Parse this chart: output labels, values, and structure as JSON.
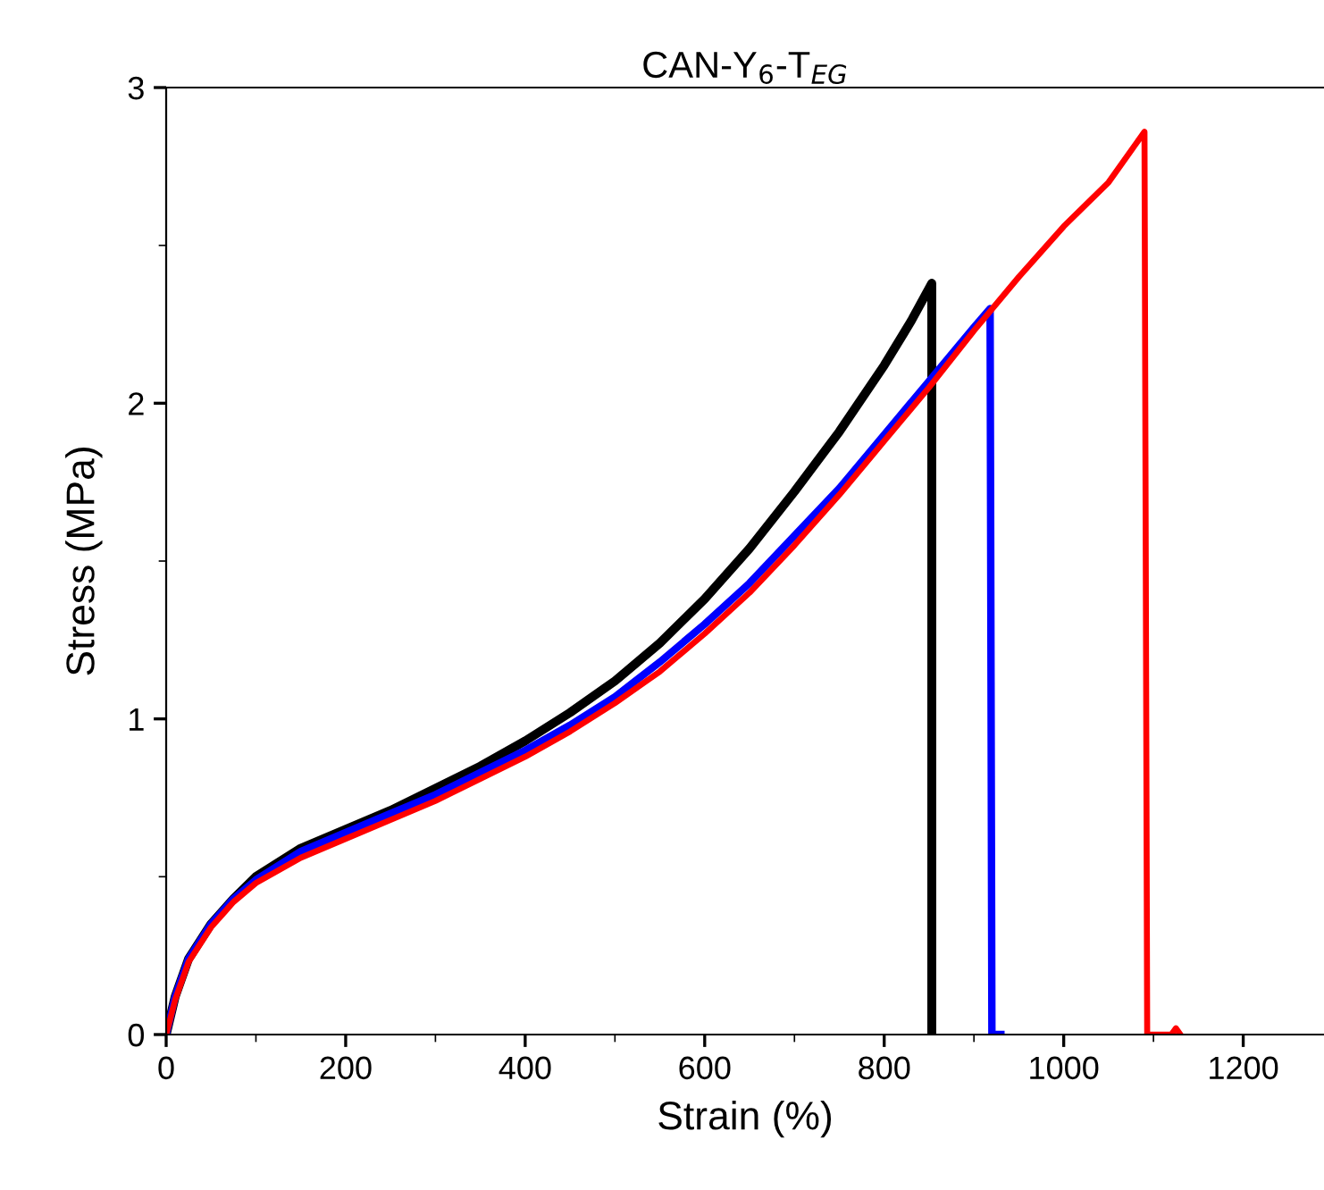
{
  "chart_data": {
    "type": "line",
    "title": "CAN-Y$_{6}$-T$_{EG}$",
    "xlabel": "Strain (%)",
    "ylabel": "Stress (MPa)",
    "xlim": [
      0,
      1290
    ],
    "ylim": [
      0,
      3
    ],
    "xticks": [
      0,
      200,
      400,
      600,
      800,
      1000,
      1200
    ],
    "yticks": [
      0,
      1,
      2,
      3
    ],
    "grid": false,
    "legend": false,
    "marker": "none",
    "line_style": "solid",
    "series": [
      {
        "color": "#000000",
        "x": [
          0,
          10,
          25,
          50,
          75,
          100,
          150,
          200,
          250,
          300,
          350,
          400,
          450,
          500,
          550,
          600,
          650,
          700,
          750,
          800,
          830,
          853,
          853
        ],
        "values": [
          0,
          0.12,
          0.24,
          0.35,
          0.43,
          0.5,
          0.59,
          0.65,
          0.71,
          0.78,
          0.85,
          0.93,
          1.02,
          1.12,
          1.24,
          1.38,
          1.54,
          1.72,
          1.91,
          2.12,
          2.26,
          2.38,
          0
        ]
      },
      {
        "color": "#0000ff",
        "x": [
          0,
          10,
          25,
          50,
          75,
          100,
          150,
          200,
          250,
          300,
          350,
          400,
          450,
          500,
          550,
          600,
          650,
          700,
          750,
          800,
          850,
          900,
          918,
          920,
          930
        ],
        "values": [
          0,
          0.12,
          0.24,
          0.35,
          0.43,
          0.49,
          0.58,
          0.64,
          0.7,
          0.76,
          0.83,
          0.9,
          0.98,
          1.07,
          1.18,
          1.3,
          1.43,
          1.58,
          1.73,
          1.9,
          2.07,
          2.24,
          2.3,
          0,
          0
        ]
      },
      {
        "color": "#ff0000",
        "x": [
          0,
          10,
          25,
          50,
          75,
          100,
          150,
          200,
          250,
          300,
          350,
          400,
          450,
          500,
          550,
          600,
          650,
          700,
          750,
          800,
          850,
          900,
          950,
          1000,
          1050,
          1090,
          1093,
          1120,
          1125,
          1130
        ],
        "values": [
          0,
          0.11,
          0.23,
          0.34,
          0.42,
          0.48,
          0.56,
          0.62,
          0.68,
          0.74,
          0.81,
          0.88,
          0.96,
          1.05,
          1.15,
          1.27,
          1.4,
          1.55,
          1.71,
          1.88,
          2.05,
          2.23,
          2.4,
          2.56,
          2.7,
          2.86,
          0,
          0,
          0.02,
          0
        ]
      }
    ]
  }
}
